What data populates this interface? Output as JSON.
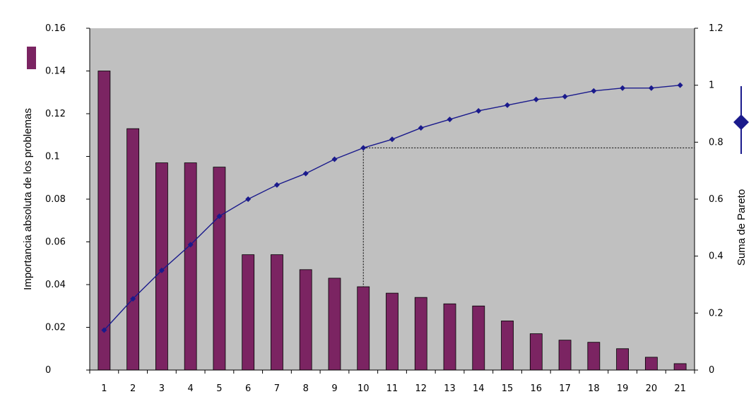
{
  "chart_data": {
    "type": "bar",
    "categories": [
      "1",
      "2",
      "3",
      "4",
      "5",
      "6",
      "7",
      "8",
      "9",
      "10",
      "11",
      "12",
      "13",
      "14",
      "15",
      "16",
      "17",
      "18",
      "19",
      "20",
      "21"
    ],
    "series": [
      {
        "type": "bar",
        "axis": "left",
        "color": "#7b2462",
        "values": [
          0.14,
          0.113,
          0.097,
          0.097,
          0.095,
          0.054,
          0.054,
          0.047,
          0.043,
          0.039,
          0.036,
          0.034,
          0.031,
          0.03,
          0.023,
          0.017,
          0.014,
          0.013,
          0.01,
          0.006,
          0.003
        ]
      },
      {
        "type": "line",
        "axis": "right",
        "color": "#1a1a8c",
        "marker": "diamond",
        "values": [
          0.14,
          0.25,
          0.35,
          0.44,
          0.54,
          0.6,
          0.65,
          0.69,
          0.74,
          0.78,
          0.81,
          0.85,
          0.88,
          0.91,
          0.93,
          0.95,
          0.96,
          0.98,
          0.99,
          0.99,
          1.0
        ]
      }
    ],
    "ylabel": "Importancia absoluta de los problemas",
    "y2label": "Suma de Pareto",
    "ylim": [
      0,
      0.16
    ],
    "y2lim": [
      0,
      1.2
    ],
    "yticks": [
      "0",
      "0.02",
      "0.04",
      "0.06",
      "0.08",
      "0.1",
      "0.12",
      "0.14",
      "0.16"
    ],
    "y2ticks": [
      "0",
      "0.2",
      "0.4",
      "0.6",
      "0.8",
      "1",
      "1.2"
    ],
    "plot_background": "#c0c0c0",
    "threshold": {
      "category": "10",
      "y2_value": 0.78
    },
    "legend": "right"
  }
}
